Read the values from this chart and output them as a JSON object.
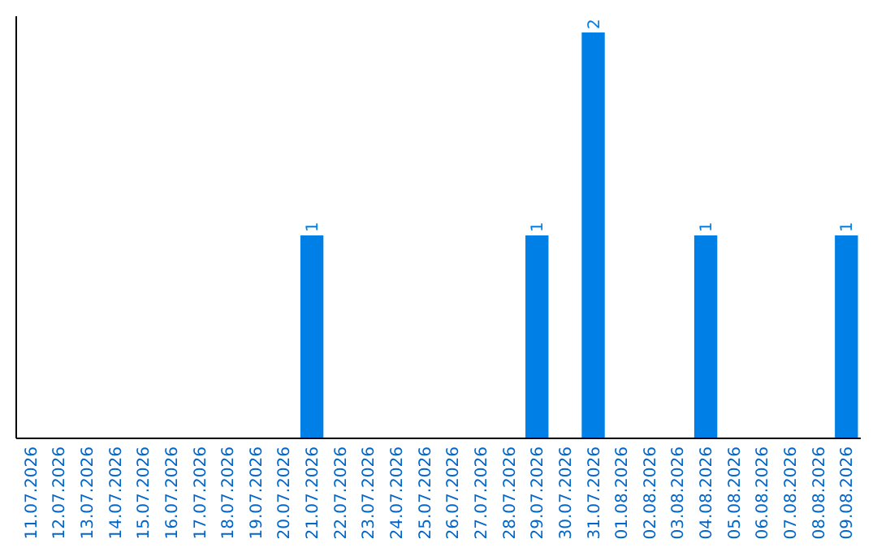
{
  "chart_data": {
    "type": "bar",
    "categories": [
      "11.07.2026",
      "12.07.2026",
      "13.07.2026",
      "14.07.2026",
      "15.07.2026",
      "16.07.2026",
      "17.07.2026",
      "18.07.2026",
      "19.07.2026",
      "20.07.2026",
      "21.07.2026",
      "22.07.2026",
      "23.07.2026",
      "24.07.2026",
      "25.07.2026",
      "26.07.2026",
      "27.07.2026",
      "28.07.2026",
      "29.07.2026",
      "30.07.2026",
      "31.07.2026",
      "01.08.2026",
      "02.08.2026",
      "03.08.2026",
      "04.08.2026",
      "05.08.2026",
      "06.08.2026",
      "07.08.2026",
      "08.08.2026",
      "09.08.2026"
    ],
    "values": [
      0,
      0,
      0,
      0,
      0,
      0,
      0,
      0,
      0,
      0,
      1,
      0,
      0,
      0,
      0,
      0,
      0,
      0,
      1,
      0,
      2,
      0,
      0,
      0,
      1,
      0,
      0,
      0,
      0,
      1
    ],
    "value_labels": [
      null,
      null,
      null,
      null,
      null,
      null,
      null,
      null,
      null,
      null,
      "1",
      null,
      null,
      null,
      null,
      null,
      null,
      null,
      "1",
      null,
      "2",
      null,
      null,
      null,
      "1",
      null,
      null,
      null,
      null,
      "1"
    ],
    "color": "#0080e6",
    "tick_labels": "x"
  }
}
